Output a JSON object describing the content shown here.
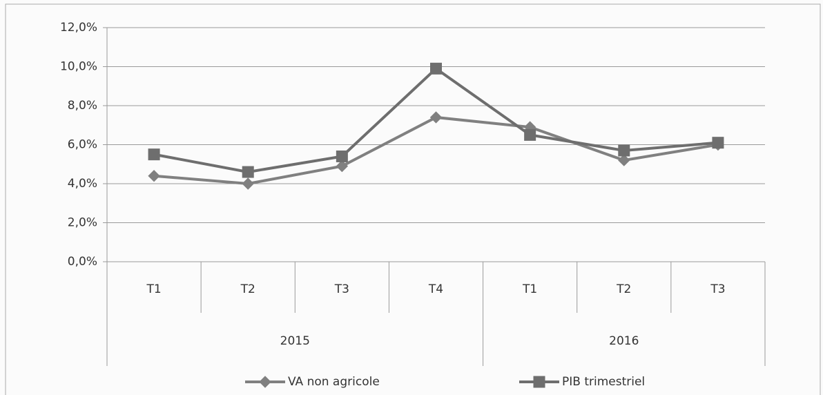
{
  "chart_data": {
    "type": "line",
    "groups": [
      {
        "name": "2015",
        "categories": [
          "T1",
          "T2",
          "T3",
          "T4"
        ]
      },
      {
        "name": "2016",
        "categories": [
          "T1",
          "T2",
          "T3"
        ]
      }
    ],
    "series": [
      {
        "name": "VA non agricole",
        "color": "#808080",
        "marker": "diamond",
        "values": [
          4.4,
          4.0,
          4.9,
          7.4,
          6.9,
          5.2,
          6.0
        ]
      },
      {
        "name": "PIB trimestriel",
        "color": "#6e6e6e",
        "marker": "square",
        "values": [
          5.5,
          4.6,
          5.4,
          9.9,
          6.5,
          5.7,
          6.1
        ]
      }
    ],
    "ylim": [
      0,
      12
    ],
    "yticks": [
      {
        "value": 0,
        "label": "0,0%"
      },
      {
        "value": 2,
        "label": "2,0%"
      },
      {
        "value": 4,
        "label": "4,0%"
      },
      {
        "value": 6,
        "label": "6,0%"
      },
      {
        "value": 8,
        "label": "8,0%"
      },
      {
        "value": 10,
        "label": "10,0%"
      },
      {
        "value": 12,
        "label": "12,0%"
      }
    ],
    "grid": true,
    "legend": "bottom"
  }
}
